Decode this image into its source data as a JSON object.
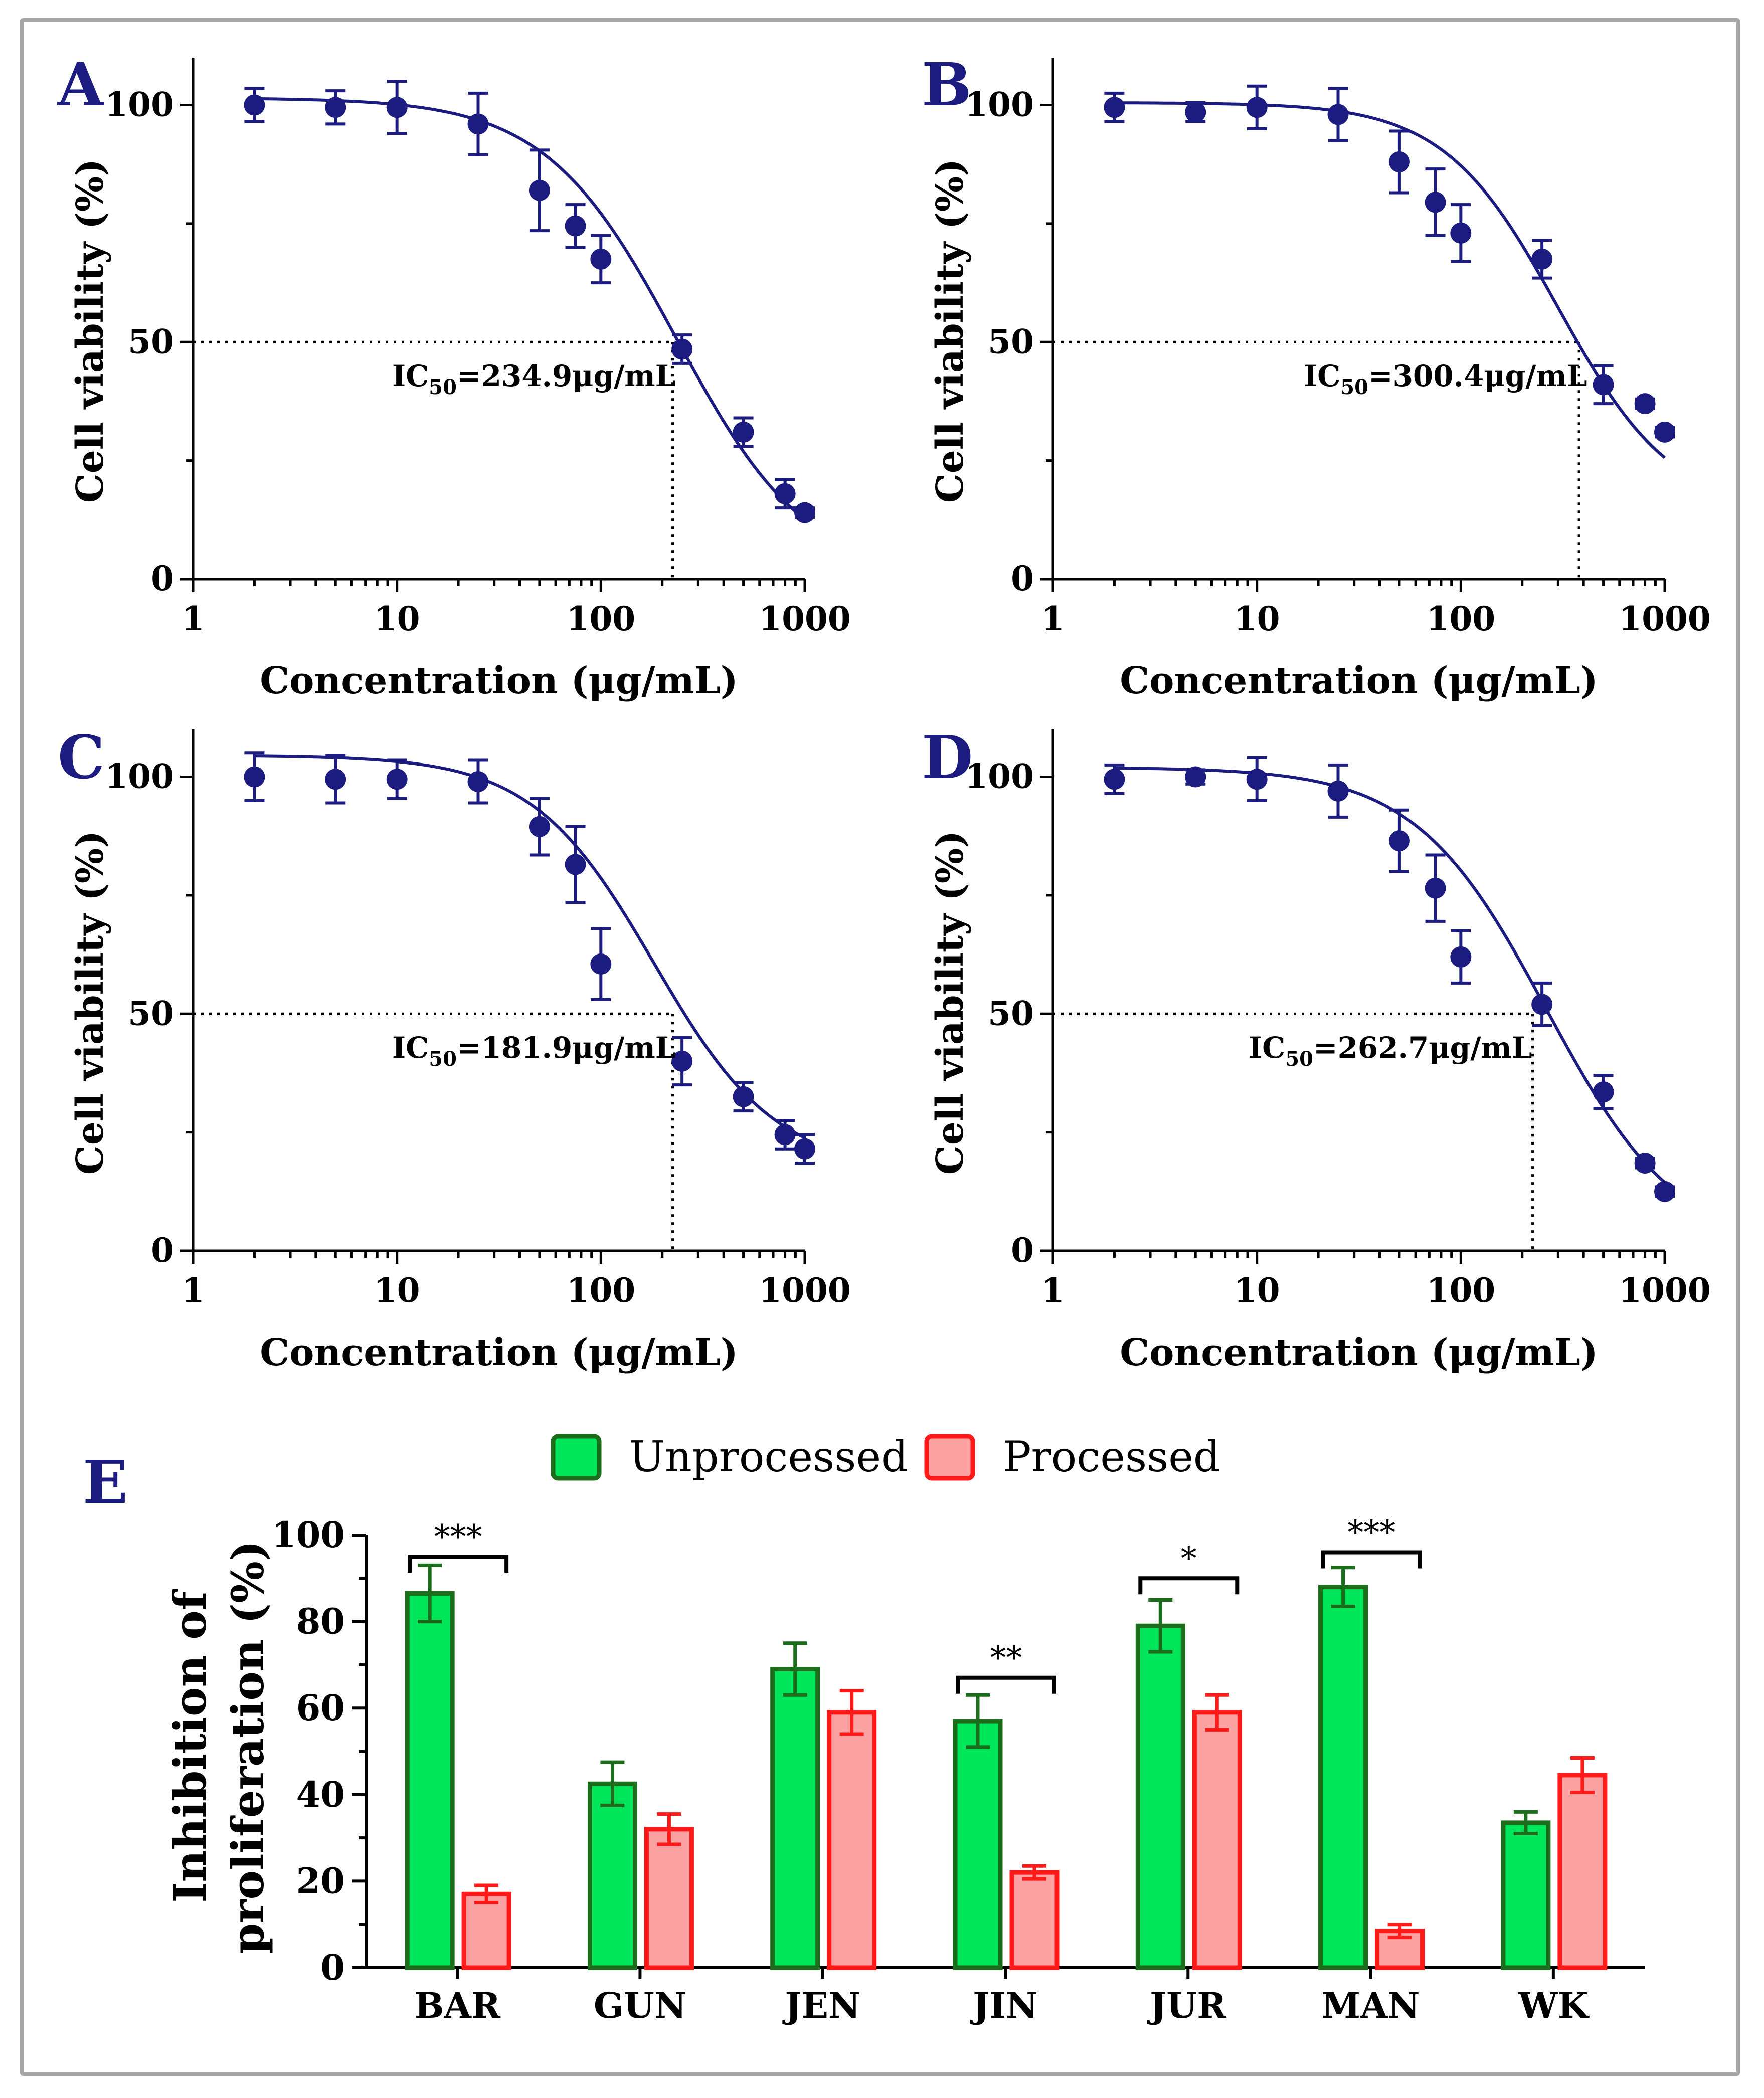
{
  "colors": {
    "curve": "#1c1c80",
    "unprocessed_fill": "#00e65a",
    "unprocessed_stroke": "#1b6d1b",
    "processed_fill": "#fca1a1",
    "processed_stroke": "#ff1a1a",
    "panel_letter": "#1c1c80",
    "axis": "#000000"
  },
  "chart_data": [
    {
      "panel": "A",
      "type": "scatter",
      "title": "",
      "xlabel": "Concentration (μg/mL)",
      "ylabel": "Cell viability (%)",
      "xscale": "log",
      "xlim": [
        1,
        1000
      ],
      "ylim": [
        0,
        110
      ],
      "xticks": [
        "1",
        "10",
        "100",
        "1000"
      ],
      "yticks": [
        "0",
        "50",
        "100"
      ],
      "x": [
        2,
        5,
        10,
        25,
        50,
        75,
        100,
        250,
        500,
        800,
        1000
      ],
      "y": [
        100,
        99.5,
        99.5,
        96,
        82,
        74.5,
        67.5,
        48.5,
        31,
        18,
        14
      ],
      "err": [
        3.5,
        3.5,
        5.5,
        6.5,
        8.5,
        4.5,
        5,
        3,
        3,
        3,
        1
      ],
      "fit": {
        "top": 101.5,
        "bottom": 0,
        "ic50": 234.9,
        "hill": 1.35
      },
      "ic50_prefix": "IC",
      "ic50_sub": "50",
      "ic50_value": "=234.9μg/mL",
      "ic50_dotted_x": 225
    },
    {
      "panel": "B",
      "type": "scatter",
      "title": "",
      "xlabel": "Concentration (μg/mL)",
      "ylabel": "Cell viability (%)",
      "xscale": "log",
      "xlim": [
        1,
        1000
      ],
      "ylim": [
        0,
        110
      ],
      "xticks": [
        "1",
        "10",
        "100",
        "1000"
      ],
      "yticks": [
        "0",
        "50",
        "100"
      ],
      "x": [
        2,
        5,
        10,
        25,
        50,
        75,
        100,
        250,
        500,
        800,
        1000
      ],
      "y": [
        99.5,
        98.5,
        99.5,
        98,
        88,
        79.5,
        73,
        67.5,
        41,
        37,
        31
      ],
      "err": [
        3,
        2,
        4.5,
        5.5,
        6.5,
        7,
        6,
        4,
        4,
        1,
        1
      ],
      "fit": {
        "top": 100.5,
        "bottom": 14,
        "ic50": 300.4,
        "hill": 1.55
      },
      "ic50_prefix": "IC",
      "ic50_sub": "50",
      "ic50_value": "=300.4μg/mL",
      "ic50_dotted_x": 380
    },
    {
      "panel": "C",
      "type": "scatter",
      "title": "",
      "xlabel": "Concentration (μg/mL)",
      "ylabel": "Cell viability (%)",
      "xscale": "log",
      "xlim": [
        1,
        1000
      ],
      "ylim": [
        0,
        110
      ],
      "xticks": [
        "1",
        "10",
        "100",
        "1000"
      ],
      "yticks": [
        "0",
        "50",
        "100"
      ],
      "x": [
        2,
        5,
        10,
        25,
        50,
        75,
        100,
        250,
        500,
        800,
        1000
      ],
      "y": [
        100,
        99.5,
        99.5,
        99,
        89.5,
        81.5,
        60.5,
        40,
        32.5,
        24.5,
        21.5
      ],
      "err": [
        5,
        5,
        4,
        4.5,
        6,
        8,
        7.5,
        5,
        3,
        3,
        3
      ],
      "fit": {
        "top": 104.5,
        "bottom": 17,
        "ic50": 181.9,
        "hill": 1.45
      },
      "ic50_prefix": "IC",
      "ic50_sub": "50",
      "ic50_value": "=181.9μg/mL",
      "ic50_dotted_x": 225
    },
    {
      "panel": "D",
      "type": "scatter",
      "title": "",
      "xlabel": "Concentration (μg/mL)",
      "ylabel": "Cell viability (%)",
      "xscale": "log",
      "xlim": [
        1,
        1000
      ],
      "ylim": [
        0,
        110
      ],
      "xticks": [
        "1",
        "10",
        "100",
        "1000"
      ],
      "yticks": [
        "0",
        "50",
        "100"
      ],
      "x": [
        2,
        5,
        10,
        25,
        50,
        75,
        100,
        250,
        500,
        800,
        1000
      ],
      "y": [
        99.5,
        100,
        99.5,
        97,
        86.5,
        76.5,
        62,
        52,
        33.5,
        18.5,
        12.5
      ],
      "err": [
        3,
        1.5,
        4.5,
        5.5,
        6.5,
        7,
        5.5,
        4.5,
        3.5,
        1,
        1
      ],
      "fit": {
        "top": 102,
        "bottom": 0,
        "ic50": 262.7,
        "hill": 1.35
      },
      "ic50_prefix": "IC",
      "ic50_sub": "50",
      "ic50_value": "=262.7μg/mL",
      "ic50_dotted_x": 225
    },
    {
      "panel": "E",
      "type": "bar",
      "title": "",
      "xlabel": "",
      "ylabel_line1": "Inhibition of",
      "ylabel_line2": "proliferation (%)",
      "ylim": [
        0,
        100
      ],
      "yticks": [
        "0",
        "20",
        "40",
        "60",
        "80",
        "100"
      ],
      "categories": [
        "BAR",
        "GUN",
        "JEN",
        "JIN",
        "JUR",
        "MAN",
        "WK"
      ],
      "legend_position": "top",
      "series": [
        {
          "name": "Unprocessed",
          "values": [
            86.5,
            42.5,
            69,
            57,
            79,
            88,
            33.5
          ],
          "err": [
            6.5,
            5,
            6,
            6,
            6,
            4.5,
            2.5
          ]
        },
        {
          "name": "Processed",
          "values": [
            17,
            32,
            59,
            22,
            59,
            8.5,
            44.5
          ],
          "err": [
            2,
            3.5,
            5,
            1.5,
            4,
            1.5,
            4
          ]
        }
      ],
      "significance": [
        {
          "category_index": 0,
          "label": "***",
          "y": 95
        },
        {
          "category_index": 3,
          "label": "**",
          "y": 67
        },
        {
          "category_index": 4,
          "label": "*",
          "y": 90
        },
        {
          "category_index": 5,
          "label": "***",
          "y": 96
        }
      ]
    }
  ]
}
